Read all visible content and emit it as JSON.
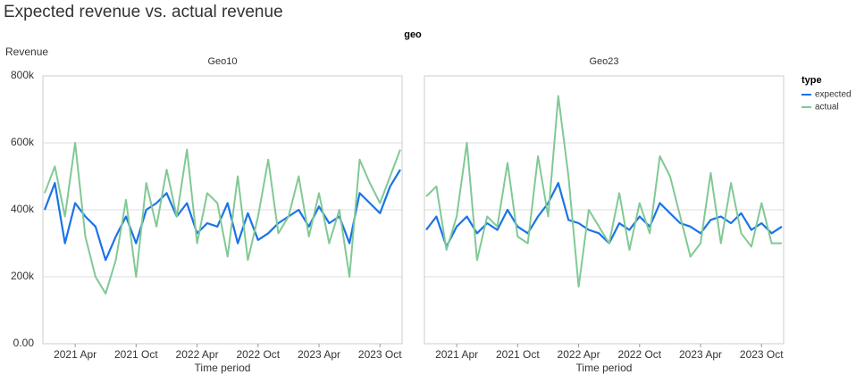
{
  "title": "Expected revenue vs. actual revenue",
  "facet_header": "geo",
  "legend_title": "type",
  "chart_data": [
    {
      "type": "line",
      "title": "Geo10",
      "y_label": "Revenue",
      "x_label": "Time period",
      "x": [
        "2021 Jan",
        "2021 Feb",
        "2021 Mar",
        "2021 Apr",
        "2021 May",
        "2021 Jun",
        "2021 Jul",
        "2021 Aug",
        "2021 Sep",
        "2021 Oct",
        "2021 Nov",
        "2021 Dec",
        "2022 Jan",
        "2022 Feb",
        "2022 Mar",
        "2022 Apr",
        "2022 May",
        "2022 Jun",
        "2022 Jul",
        "2022 Aug",
        "2022 Sep",
        "2022 Oct",
        "2022 Nov",
        "2022 Dec",
        "2023 Jan",
        "2023 Feb",
        "2023 Mar",
        "2023 Apr",
        "2023 May",
        "2023 Jun",
        "2023 Jul",
        "2023 Aug",
        "2023 Sep",
        "2023 Oct",
        "2023 Nov",
        "2023 Dec"
      ],
      "xticks": [
        "2021 Apr",
        "2021 Oct",
        "2022 Apr",
        "2022 Oct",
        "2023 Apr",
        "2023 Oct"
      ],
      "ylim": [
        0,
        800000
      ],
      "yticks": [
        {
          "value": 0,
          "label": "0.00"
        },
        {
          "value": 200000,
          "label": "200k"
        },
        {
          "value": 400000,
          "label": "400k"
        },
        {
          "value": 600000,
          "label": "600k"
        },
        {
          "value": 800000,
          "label": "800k"
        }
      ],
      "grid": true,
      "series": [
        {
          "name": "expected",
          "color": "#1a73e8",
          "values": [
            400000,
            480000,
            300000,
            420000,
            380000,
            350000,
            250000,
            320000,
            380000,
            300000,
            400000,
            420000,
            450000,
            380000,
            420000,
            330000,
            360000,
            350000,
            420000,
            300000,
            390000,
            310000,
            330000,
            360000,
            380000,
            400000,
            350000,
            410000,
            360000,
            380000,
            300000,
            450000,
            420000,
            390000,
            470000,
            520000
          ]
        },
        {
          "name": "actual",
          "color": "#81c995",
          "values": [
            450000,
            530000,
            380000,
            600000,
            320000,
            200000,
            150000,
            250000,
            430000,
            200000,
            480000,
            350000,
            520000,
            380000,
            580000,
            300000,
            450000,
            420000,
            260000,
            500000,
            250000,
            380000,
            550000,
            330000,
            380000,
            500000,
            320000,
            450000,
            300000,
            400000,
            200000,
            550000,
            480000,
            420000,
            500000,
            580000
          ]
        }
      ]
    },
    {
      "type": "line",
      "title": "Geo23",
      "x_label": "Time period",
      "x": [
        "2021 Jan",
        "2021 Feb",
        "2021 Mar",
        "2021 Apr",
        "2021 May",
        "2021 Jun",
        "2021 Jul",
        "2021 Aug",
        "2021 Sep",
        "2021 Oct",
        "2021 Nov",
        "2021 Dec",
        "2022 Jan",
        "2022 Feb",
        "2022 Mar",
        "2022 Apr",
        "2022 May",
        "2022 Jun",
        "2022 Jul",
        "2022 Aug",
        "2022 Sep",
        "2022 Oct",
        "2022 Nov",
        "2022 Dec",
        "2023 Jan",
        "2023 Feb",
        "2023 Mar",
        "2023 Apr",
        "2023 May",
        "2023 Jun",
        "2023 Jul",
        "2023 Aug",
        "2023 Sep",
        "2023 Oct",
        "2023 Nov",
        "2023 Dec"
      ],
      "xticks": [
        "2021 Apr",
        "2021 Oct",
        "2022 Apr",
        "2022 Oct",
        "2023 Apr",
        "2023 Oct"
      ],
      "ylim": [
        0,
        800000
      ],
      "series": [
        {
          "name": "expected",
          "color": "#1a73e8",
          "values": [
            340000,
            380000,
            290000,
            350000,
            380000,
            330000,
            360000,
            340000,
            400000,
            350000,
            330000,
            380000,
            420000,
            480000,
            370000,
            360000,
            340000,
            330000,
            300000,
            360000,
            340000,
            380000,
            350000,
            420000,
            390000,
            360000,
            350000,
            330000,
            370000,
            380000,
            360000,
            390000,
            340000,
            360000,
            330000,
            350000
          ]
        },
        {
          "name": "actual",
          "color": "#81c995",
          "values": [
            440000,
            470000,
            280000,
            380000,
            600000,
            250000,
            380000,
            350000,
            540000,
            320000,
            300000,
            560000,
            380000,
            740000,
            500000,
            170000,
            400000,
            350000,
            300000,
            450000,
            280000,
            420000,
            330000,
            560000,
            500000,
            380000,
            260000,
            300000,
            510000,
            300000,
            480000,
            330000,
            290000,
            420000,
            300000,
            300000
          ]
        }
      ]
    }
  ]
}
